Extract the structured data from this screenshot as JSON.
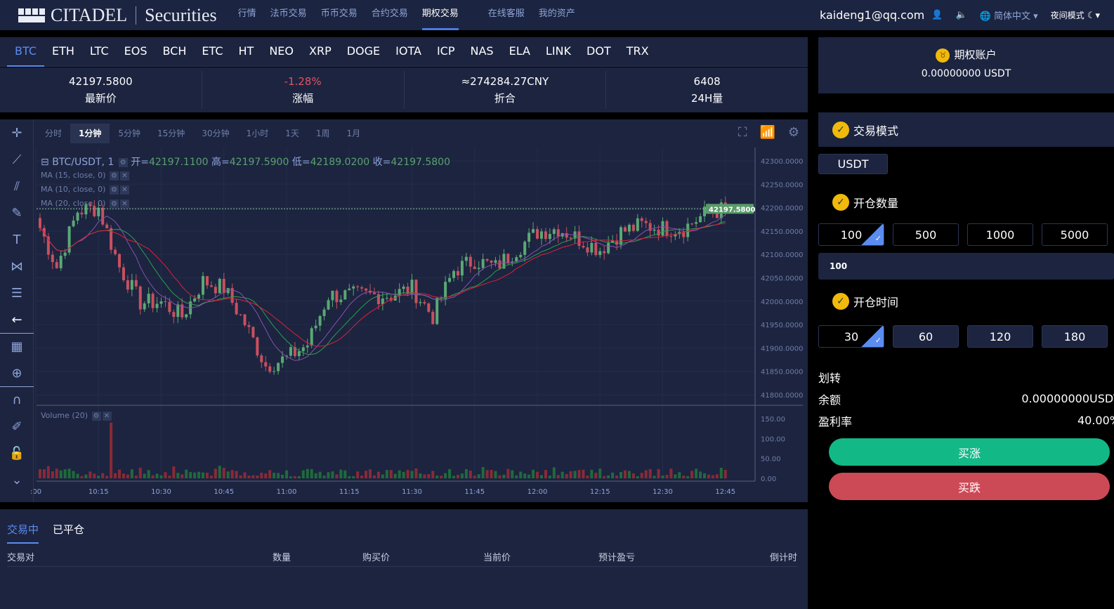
{
  "header": {
    "logo_brand": "CITADEL",
    "logo_sub": "Securities",
    "nav": [
      {
        "label": "行情"
      },
      {
        "label": "法币交易"
      },
      {
        "label": "币币交易"
      },
      {
        "label": "合约交易"
      },
      {
        "label": "期权交易",
        "active": true
      },
      {
        "label": "在线客服"
      },
      {
        "label": "我的资产"
      }
    ],
    "email": "kaideng1@qq.com",
    "language": "简体中文",
    "night_mode": "夜间模式"
  },
  "coins": [
    "BTC",
    "ETH",
    "LTC",
    "EOS",
    "BCH",
    "ETC",
    "HT",
    "NEO",
    "XRP",
    "DOGE",
    "IOTA",
    "ICP",
    "NAS",
    "ELA",
    "LINK",
    "DOT",
    "TRX"
  ],
  "active_coin": "BTC",
  "stats": [
    {
      "value": "42197.5800",
      "label": "最新价"
    },
    {
      "value": "-1.28%",
      "label": "涨幅",
      "color": "#e05563"
    },
    {
      "value": "≈274284.27CNY",
      "label": "折合"
    },
    {
      "value": "6408",
      "label": "24H量"
    }
  ],
  "chart": {
    "timeframes": [
      "分时",
      "1分钟",
      "5分钟",
      "15分钟",
      "30分钟",
      "1小时",
      "1天",
      "1周",
      "1月"
    ],
    "active_timeframe": "1分钟",
    "symbol": "BTC/USDT, 1",
    "open_label": "开=",
    "open": "42197.1100",
    "high_label": "高=",
    "high": "42197.5900",
    "low_label": "低=",
    "low": "42189.0200",
    "close_label": "收=",
    "close": "42197.5800",
    "ma": [
      "MA (15, close, 0)",
      "MA (10, close, 0)",
      "MA (20, close, 0)"
    ],
    "volume_label": "Volume (20)",
    "colors": {
      "up": "#5aa874",
      "down": "#c8505f",
      "ma15": "#2e9e4f",
      "ma10": "#8b4fb0",
      "ma20": "#e0203a",
      "last_price_bg": "#5a9a6a"
    }
  },
  "chart_data": {
    "type": "candlestick",
    "price_ticks": [
      "42300.0000",
      "42250.0000",
      "42200.0000",
      "42150.0000",
      "42100.0000",
      "42050.0000",
      "42000.0000",
      "41950.0000",
      "41900.0000",
      "41850.0000",
      "41800.0000"
    ],
    "volume_ticks": [
      "150.00",
      "100.00",
      "50.00",
      "0.00"
    ],
    "time_ticks": [
      ":00",
      "10:15",
      "10:30",
      "10:45",
      "11:00",
      "11:15",
      "11:30",
      "11:45",
      "12:00",
      "12:15",
      "12:30",
      "12:45"
    ],
    "last_price": "42197.5800",
    "ylim": [
      41780,
      42320
    ],
    "volume_ylim": [
      0,
      170
    ],
    "close_every_5min": {
      "start": "10:00",
      "values": [
        42178,
        42073,
        42193,
        42200,
        42073,
        41998,
        41998,
        41968,
        42043,
        42028,
        41953,
        41863,
        41878,
        41908,
        42013,
        42013,
        42013,
        42013,
        42028,
        41968,
        42066,
        42088,
        42073,
        42111,
        42148,
        42156,
        42133,
        42111,
        42148,
        42163,
        42156,
        42156,
        42186,
        42197.58
      ]
    },
    "volume_spike": {
      "time": "10:18",
      "value": 140
    }
  },
  "account": {
    "title": "期权账户",
    "balance": "0.00000000 USDT"
  },
  "trade": {
    "mode_label": "交易模式",
    "currency": "USDT",
    "qty_label": "开仓数量",
    "qty_options": [
      "100",
      "500",
      "1000",
      "5000"
    ],
    "qty_value": "100",
    "time_label": "开仓时间",
    "time_options": [
      "30",
      "60",
      "120",
      "180"
    ],
    "transfer": "划转",
    "balance_label": "余额",
    "balance": "0.00000000USDT",
    "rate_label": "盈利率",
    "rate": "40.00%",
    "buy_up": "买涨",
    "buy_down": "买跌",
    "up_color": "#13b887",
    "down_color": "#cc4a55"
  },
  "orders": {
    "tabs": [
      "交易中",
      "已平仓"
    ],
    "columns": [
      "交易对",
      "数量",
      "购买价",
      "当前价",
      "预计盈亏",
      "倒计时"
    ]
  }
}
